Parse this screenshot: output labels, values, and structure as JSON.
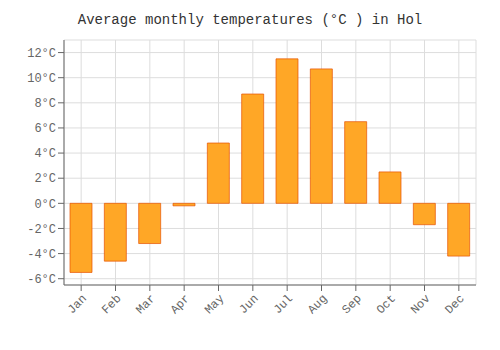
{
  "chart_data": {
    "type": "bar",
    "title": "Average monthly temperatures (°C ) in Hol",
    "categories": [
      "Jan",
      "Feb",
      "Mar",
      "Apr",
      "May",
      "Jun",
      "Jul",
      "Aug",
      "Sep",
      "Oct",
      "Nov",
      "Dec"
    ],
    "values": [
      -5.5,
      -4.6,
      -3.2,
      -0.2,
      4.8,
      8.7,
      11.5,
      10.7,
      6.5,
      2.5,
      -1.7,
      -4.2
    ],
    "color": "#FFA726",
    "ylim": [
      -6.5,
      13.0
    ],
    "yticks": [
      {
        "value": -6,
        "label": "-6°C"
      },
      {
        "value": -4,
        "label": "-4°C"
      },
      {
        "value": -2,
        "label": "-2°C"
      },
      {
        "value": 0,
        "label": "0°C"
      },
      {
        "value": 2,
        "label": "2°C"
      },
      {
        "value": 4,
        "label": "4°C"
      },
      {
        "value": 6,
        "label": "6°C"
      },
      {
        "value": 8,
        "label": "8°C"
      },
      {
        "value": 10,
        "label": "10°C"
      },
      {
        "value": 12,
        "label": "12°C"
      }
    ],
    "grid": true
  }
}
